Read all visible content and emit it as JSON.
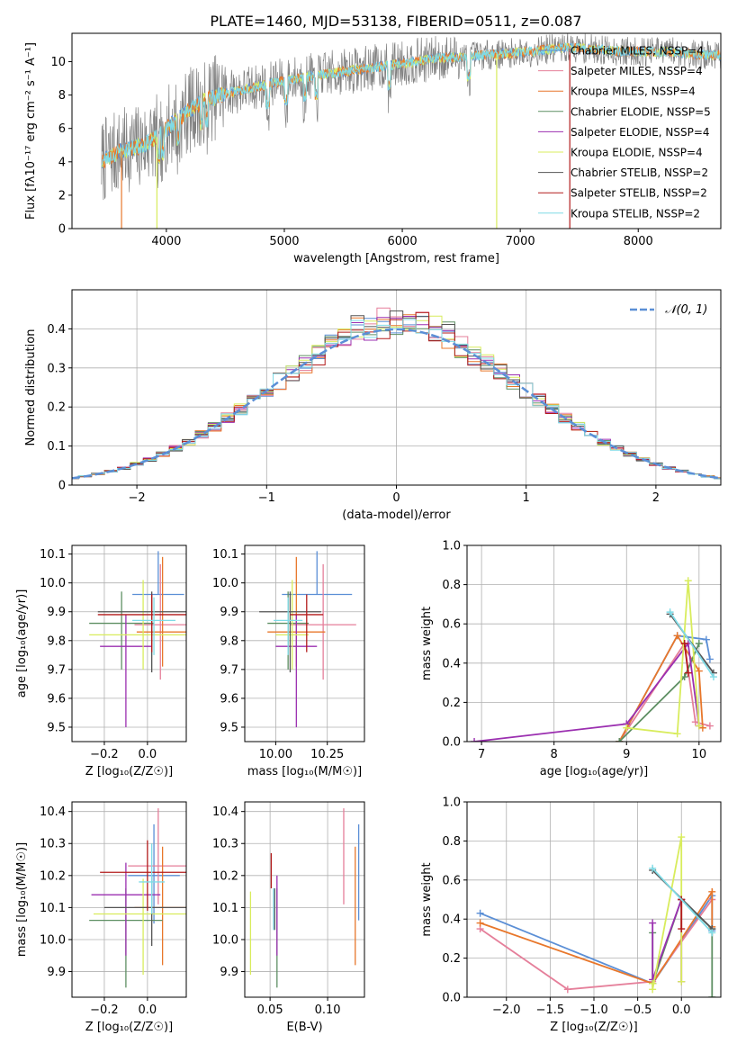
{
  "figure_title": "PLATE=1460, MJD=53138, FIBERID=0511, z=0.087",
  "colors": {
    "chabrier_miles": "#5b8fd6",
    "salpeter_miles": "#e57f9a",
    "kroupa_miles": "#e8772b",
    "chabrier_elodie": "#5e8f63",
    "salpeter_elodie": "#9b2fb0",
    "kroupa_elodie": "#d8ec5c",
    "chabrier_stelib": "#555555",
    "salpeter_stelib": "#b31b1b",
    "kroupa_stelib": "#7fdbe6",
    "data_gray": "#808080",
    "grid": "#b0b0b0"
  },
  "chart_data": [
    {
      "id": "spectrum",
      "type": "line",
      "xlabel": "wavelength [Angstrom, rest frame]",
      "ylabel": "Flux [fλ10⁻¹⁷ erg cm⁻² s⁻¹ A⁻¹]",
      "xlim": [
        3200,
        8700
      ],
      "ylim": [
        0,
        11.7
      ],
      "xticks": [
        4000,
        5000,
        6000,
        7000,
        8000
      ],
      "yticks": [
        0,
        2,
        4,
        6,
        8,
        10
      ],
      "grid": false,
      "legend_position": "right",
      "legend": [
        {
          "label": "Chabrier MILES, NSSP=4",
          "color_key": "chabrier_miles"
        },
        {
          "label": "Salpeter MILES, NSSP=4",
          "color_key": "salpeter_miles"
        },
        {
          "label": "Kroupa MILES, NSSP=4",
          "color_key": "kroupa_miles"
        },
        {
          "label": "Chabrier ELODIE, NSSP=5",
          "color_key": "chabrier_elodie"
        },
        {
          "label": "Salpeter ELODIE, NSSP=4",
          "color_key": "salpeter_elodie"
        },
        {
          "label": "Kroupa ELODIE, NSSP=4",
          "color_key": "kroupa_elodie"
        },
        {
          "label": "Chabrier STELIB, NSSP=2",
          "color_key": "chabrier_stelib"
        },
        {
          "label": "Salpeter STELIB, NSSP=2",
          "color_key": "salpeter_stelib"
        },
        {
          "label": "Kroupa STELIB, NSSP=2",
          "color_key": "kroupa_stelib"
        }
      ],
      "continuum": [
        [
          3450,
          4.0
        ],
        [
          3600,
          4.6
        ],
        [
          3800,
          5.0
        ],
        [
          3950,
          5.6
        ],
        [
          4100,
          6.6
        ],
        [
          4300,
          7.6
        ],
        [
          4500,
          8.1
        ],
        [
          4700,
          8.4
        ],
        [
          4900,
          8.7
        ],
        [
          5100,
          9.0
        ],
        [
          5300,
          9.2
        ],
        [
          5500,
          9.4
        ],
        [
          5700,
          9.6
        ],
        [
          5900,
          9.8
        ],
        [
          6100,
          10.0
        ],
        [
          6300,
          10.2
        ],
        [
          6500,
          10.3
        ],
        [
          6700,
          10.4
        ],
        [
          6900,
          10.5
        ],
        [
          7100,
          10.6
        ],
        [
          7300,
          10.8
        ],
        [
          7500,
          10.8
        ],
        [
          7700,
          10.7
        ],
        [
          7900,
          10.6
        ],
        [
          8100,
          10.6
        ],
        [
          8300,
          10.6
        ],
        [
          8500,
          10.4
        ]
      ],
      "spikes": [
        {
          "x": 3620,
          "y": 0,
          "color_key": "kroupa_miles"
        },
        {
          "x": 3920,
          "y": 0,
          "color_key": "kroupa_elodie"
        },
        {
          "x": 6800,
          "y": 0,
          "color_key": "kroupa_elodie"
        },
        {
          "x": 7420,
          "y": 0,
          "color_key": "salpeter_stelib"
        }
      ]
    },
    {
      "id": "residual_hist",
      "type": "histogram",
      "xlabel": "(data-model)/error",
      "ylabel": "Normed distribution",
      "xlim": [
        -2.5,
        2.5
      ],
      "ylim": [
        0,
        0.5
      ],
      "xticks": [
        -2,
        -1,
        0,
        1,
        2
      ],
      "yticks": [
        0.0,
        0.1,
        0.2,
        0.3,
        0.4
      ],
      "grid": true,
      "bin_width": 0.1,
      "legend_position": "top-right",
      "reference_curve": {
        "label": "𝒩(0, 1)",
        "color": "#5b8fd6"
      }
    },
    {
      "id": "age_vs_Z",
      "type": "errorbar",
      "xlabel": "Z [log₁₀(Z/Z☉)]",
      "ylabel": "age  [log₁₀(age/yr)]",
      "xlim": [
        -0.35,
        0.18
      ],
      "ylim": [
        9.45,
        10.13
      ],
      "xticks": [
        -0.2,
        0.0
      ],
      "yticks": [
        9.5,
        9.6,
        9.7,
        9.8,
        9.9,
        10.0,
        10.1
      ],
      "grid": true,
      "points": [
        {
          "color_key": "chabrier_miles",
          "x": 0.05,
          "xerr": 0.12,
          "y": 9.96,
          "yerr": [
            0.0,
            0.15
          ]
        },
        {
          "color_key": "salpeter_miles",
          "x": 0.06,
          "xerr": 0.12,
          "y": 9.855,
          "yerr": [
            0.19,
            0.21
          ]
        },
        {
          "color_key": "kroupa_miles",
          "x": 0.07,
          "xerr": 0.12,
          "y": 9.83,
          "yerr": [
            0.12,
            0.26
          ]
        },
        {
          "color_key": "chabrier_elodie",
          "x": -0.12,
          "xerr": 0.15,
          "y": 9.86,
          "yerr": [
            0.16,
            0.11
          ]
        },
        {
          "color_key": "salpeter_elodie",
          "x": -0.1,
          "xerr": 0.12,
          "y": 9.78,
          "yerr": [
            0.28,
            0.11
          ]
        },
        {
          "color_key": "kroupa_elodie",
          "x": -0.02,
          "xerr": 0.25,
          "y": 9.82,
          "yerr": [
            0.12,
            0.19
          ]
        },
        {
          "color_key": "chabrier_stelib",
          "x": 0.02,
          "xerr": 0.25,
          "y": 9.9,
          "yerr": [
            0.21,
            0.07
          ]
        },
        {
          "color_key": "salpeter_stelib",
          "x": 0.02,
          "xerr": 0.25,
          "y": 9.89,
          "yerr": [
            0.13,
            0.07
          ]
        },
        {
          "color_key": "kroupa_stelib",
          "x": 0.03,
          "xerr": 0.1,
          "y": 9.87,
          "yerr": [
            0.12,
            0.08
          ]
        }
      ]
    },
    {
      "id": "age_vs_mass",
      "type": "errorbar",
      "xlabel": "mass [log₁₀(M/M☉)]",
      "xlim": [
        9.85,
        10.43
      ],
      "ylim": [
        9.45,
        10.13
      ],
      "xticks": [
        10.0,
        10.25
      ],
      "yticks": [
        9.5,
        9.6,
        9.7,
        9.8,
        9.9,
        10.0,
        10.1
      ],
      "grid": true,
      "points": [
        {
          "color_key": "chabrier_miles",
          "x": 10.2,
          "xerr": 0.17,
          "y": 9.96,
          "yerr": [
            0.0,
            0.15
          ]
        },
        {
          "color_key": "salpeter_miles",
          "x": 10.23,
          "xerr": 0.16,
          "y": 9.855,
          "yerr": [
            0.19,
            0.21
          ]
        },
        {
          "color_key": "kroupa_miles",
          "x": 10.1,
          "xerr": 0.14,
          "y": 9.83,
          "yerr": [
            0.12,
            0.26
          ]
        },
        {
          "color_key": "chabrier_elodie",
          "x": 10.06,
          "xerr": 0.1,
          "y": 9.86,
          "yerr": [
            0.16,
            0.11
          ]
        },
        {
          "color_key": "salpeter_elodie",
          "x": 10.1,
          "xerr": 0.1,
          "y": 9.78,
          "yerr": [
            0.28,
            0.11
          ]
        },
        {
          "color_key": "kroupa_elodie",
          "x": 10.08,
          "xerr": 0.08,
          "y": 9.82,
          "yerr": [
            0.12,
            0.19
          ]
        },
        {
          "color_key": "chabrier_stelib",
          "x": 10.07,
          "xerr": 0.15,
          "y": 9.9,
          "yerr": [
            0.21,
            0.07
          ]
        },
        {
          "color_key": "salpeter_stelib",
          "x": 10.15,
          "xerr": 0.08,
          "y": 9.89,
          "yerr": [
            0.13,
            0.07
          ]
        },
        {
          "color_key": "kroupa_stelib",
          "x": 10.06,
          "xerr": 0.07,
          "y": 9.87,
          "yerr": [
            0.12,
            0.08
          ]
        }
      ]
    },
    {
      "id": "weight_vs_age",
      "type": "line",
      "xlabel": "age  [log₁₀(age/yr)]",
      "ylabel": "mass weight",
      "xlim": [
        6.8,
        10.3
      ],
      "ylim": [
        0,
        1.0
      ],
      "xticks": [
        7,
        8,
        9,
        10
      ],
      "yticks": [
        0.0,
        0.2,
        0.4,
        0.6,
        0.8,
        1.0
      ],
      "grid": true,
      "series": [
        {
          "color_key": "chabrier_miles",
          "x": [
            8.9,
            9.7,
            10.1,
            10.15
          ],
          "y": [
            0.0,
            0.54,
            0.52,
            0.42
          ]
        },
        {
          "color_key": "salpeter_miles",
          "x": [
            8.9,
            9.8,
            9.95,
            10.15
          ],
          "y": [
            0.0,
            0.5,
            0.1,
            0.08
          ]
        },
        {
          "color_key": "kroupa_miles",
          "x": [
            8.9,
            9.7,
            10.0,
            10.05
          ],
          "y": [
            0.0,
            0.54,
            0.36,
            0.07
          ]
        },
        {
          "color_key": "chabrier_elodie",
          "x": [
            8.9,
            9.8,
            10.0
          ],
          "y": [
            0.0,
            0.33,
            0.5
          ]
        },
        {
          "color_key": "salpeter_elodie",
          "x": [
            6.9,
            9.0,
            9.85,
            10.0
          ],
          "y": [
            0.0,
            0.09,
            0.5,
            0.08
          ]
        },
        {
          "color_key": "kroupa_elodie",
          "x": [
            9.0,
            9.7,
            9.85,
            10.0
          ],
          "y": [
            0.07,
            0.04,
            0.82,
            0.08
          ]
        },
        {
          "color_key": "chabrier_stelib",
          "x": [
            9.6,
            10.2
          ],
          "y": [
            0.65,
            0.35
          ]
        },
        {
          "color_key": "salpeter_stelib",
          "x": [
            9.8,
            9.85
          ],
          "y": [
            0.5,
            0.35
          ]
        },
        {
          "color_key": "kroupa_stelib",
          "x": [
            9.6,
            10.2
          ],
          "y": [
            0.66,
            0.33
          ]
        }
      ]
    },
    {
      "id": "mass_vs_Z",
      "type": "errorbar",
      "xlabel": "Z [log₁₀(Z/Z☉)]",
      "ylabel": "mass [log₁₀(M/M☉)]",
      "xlim": [
        -0.35,
        0.18
      ],
      "ylim": [
        9.82,
        10.43
      ],
      "xticks": [
        -0.2,
        0.0
      ],
      "yticks": [
        9.9,
        10.0,
        10.1,
        10.2,
        10.3,
        10.4
      ],
      "grid": true,
      "points": [
        {
          "color_key": "chabrier_miles",
          "x": 0.03,
          "xerr": 0.12,
          "y": 10.2,
          "yerr": [
            0.15,
            0.16
          ]
        },
        {
          "color_key": "salpeter_miles",
          "x": 0.05,
          "xerr": 0.14,
          "y": 10.23,
          "yerr": [
            0.12,
            0.18
          ]
        },
        {
          "color_key": "kroupa_miles",
          "x": 0.07,
          "xerr": 0.13,
          "y": 10.1,
          "yerr": [
            0.18,
            0.19
          ]
        },
        {
          "color_key": "chabrier_elodie",
          "x": -0.1,
          "xerr": 0.17,
          "y": 10.06,
          "yerr": [
            0.21,
            0.1
          ]
        },
        {
          "color_key": "salpeter_elodie",
          "x": -0.1,
          "xerr": 0.16,
          "y": 10.14,
          "yerr": [
            0.19,
            0.1
          ]
        },
        {
          "color_key": "kroupa_elodie",
          "x": -0.02,
          "xerr": 0.23,
          "y": 10.08,
          "yerr": [
            0.19,
            0.11
          ]
        },
        {
          "color_key": "chabrier_stelib",
          "x": 0.02,
          "xerr": 0.22,
          "y": 10.1,
          "yerr": [
            0.12,
            0.1
          ]
        },
        {
          "color_key": "salpeter_stelib",
          "x": 0.0,
          "xerr": 0.22,
          "y": 10.21,
          "yerr": [
            0.12,
            0.1
          ]
        },
        {
          "color_key": "kroupa_stelib",
          "x": 0.02,
          "xerr": 0.06,
          "y": 10.18,
          "yerr": [
            0.1,
            0.12
          ]
        }
      ]
    },
    {
      "id": "mass_vs_ebv",
      "type": "errorbar",
      "xlabel": "E(B-V)",
      "xlim": [
        0.028,
        0.132
      ],
      "ylim": [
        9.82,
        10.43
      ],
      "xticks": [
        0.05,
        0.1
      ],
      "yticks": [
        9.9,
        10.0,
        10.1,
        10.2,
        10.3,
        10.4
      ],
      "grid": true,
      "points": [
        {
          "color_key": "chabrier_miles",
          "x": 0.127,
          "xerr": 0.0,
          "y": 10.2,
          "yerr": [
            0.14,
            0.16
          ]
        },
        {
          "color_key": "salpeter_miles",
          "x": 0.114,
          "xerr": 0.0,
          "y": 10.23,
          "yerr": [
            0.12,
            0.18
          ]
        },
        {
          "color_key": "kroupa_miles",
          "x": 0.124,
          "xerr": 0.0,
          "y": 10.1,
          "yerr": [
            0.18,
            0.19
          ]
        },
        {
          "color_key": "chabrier_elodie",
          "x": 0.056,
          "xerr": 0.0,
          "y": 10.06,
          "yerr": [
            0.21,
            0.1
          ]
        },
        {
          "color_key": "salpeter_elodie",
          "x": 0.056,
          "xerr": 0.0,
          "y": 10.14,
          "yerr": [
            0.19,
            0.06
          ]
        },
        {
          "color_key": "kroupa_elodie",
          "x": 0.033,
          "xerr": 0.0,
          "y": 10.02,
          "yerr": [
            0.13,
            0.13
          ]
        },
        {
          "color_key": "chabrier_stelib",
          "x": 0.054,
          "xerr": 0.0,
          "y": 10.1,
          "yerr": [
            0.07,
            0.06
          ]
        },
        {
          "color_key": "salpeter_stelib",
          "x": 0.051,
          "xerr": 0.0,
          "y": 10.21,
          "yerr": [
            0.05,
            0.06
          ]
        },
        {
          "color_key": "kroupa_stelib",
          "x": 0.053,
          "xerr": 0.0,
          "y": 10.1,
          "yerr": [
            0.07,
            0.06
          ]
        }
      ]
    },
    {
      "id": "weight_vs_Z",
      "type": "line",
      "xlabel": "Z [log₁₀(Z/Z☉)]",
      "ylabel": "mass weight",
      "xlim": [
        -2.45,
        0.45
      ],
      "ylim": [
        0,
        1.0
      ],
      "xticks": [
        -2.0,
        -1.5,
        -1.0,
        -0.5,
        0.0
      ],
      "yticks": [
        0.0,
        0.2,
        0.4,
        0.6,
        0.8,
        1.0
      ],
      "grid": true,
      "series": [
        {
          "color_key": "chabrier_miles",
          "x": [
            -2.3,
            -0.33,
            0.35,
            0.35
          ],
          "y": [
            0.43,
            0.07,
            0.52,
            0.34
          ]
        },
        {
          "color_key": "salpeter_miles",
          "x": [
            -2.3,
            -1.3,
            -0.33,
            0.35
          ],
          "y": [
            0.35,
            0.04,
            0.08,
            0.5
          ]
        },
        {
          "color_key": "kroupa_miles",
          "x": [
            -2.3,
            -0.33,
            0.35,
            0.35
          ],
          "y": [
            0.38,
            0.07,
            0.54,
            0.36
          ]
        },
        {
          "color_key": "chabrier_elodie",
          "x": [
            -0.33,
            -0.33,
            0.0,
            0.35,
            0.35
          ],
          "y": [
            0.33,
            0.07,
            0.5,
            0.35,
            0.0
          ]
        },
        {
          "color_key": "salpeter_elodie",
          "x": [
            -0.33,
            -0.33,
            0.0,
            0.0
          ],
          "y": [
            0.38,
            0.09,
            0.5,
            0.08
          ]
        },
        {
          "color_key": "kroupa_elodie",
          "x": [
            -0.33,
            -0.33,
            0.0,
            0.0
          ],
          "y": [
            0.07,
            0.04,
            0.82,
            0.08
          ]
        },
        {
          "color_key": "chabrier_stelib",
          "x": [
            -0.33,
            0.35
          ],
          "y": [
            0.65,
            0.35
          ]
        },
        {
          "color_key": "salpeter_stelib",
          "x": [
            0.0,
            0.0
          ],
          "y": [
            0.5,
            0.35
          ]
        },
        {
          "color_key": "kroupa_stelib",
          "x": [
            -0.33,
            0.35
          ],
          "y": [
            0.66,
            0.33
          ]
        }
      ]
    }
  ]
}
